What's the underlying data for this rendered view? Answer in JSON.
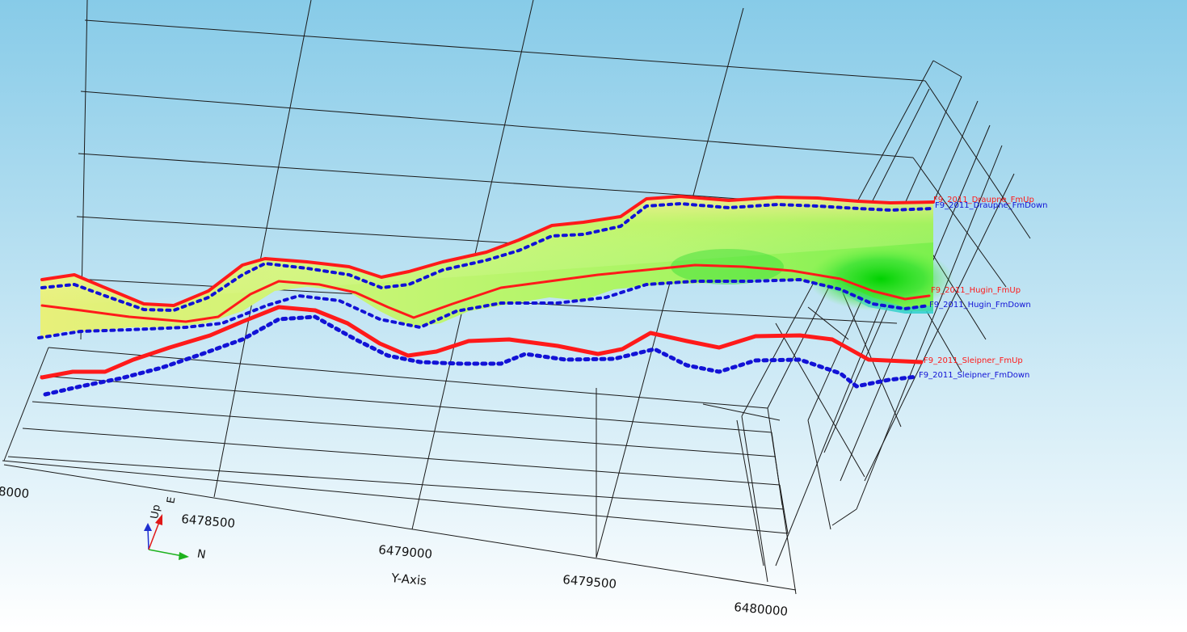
{
  "scene": {
    "background_top": "#87cbe8",
    "background_bottom": "#ffffff",
    "grid_color": "#1a1a1a"
  },
  "axes": {
    "y_axis_title": "Y-Axis",
    "y_ticks": [
      "8000",
      "6478500",
      "6479000",
      "6479500",
      "6480000"
    ]
  },
  "orientation": {
    "up_label": "Up",
    "east_label": "E",
    "north_label": "N",
    "up_color": "#1e2fd0",
    "east_color": "#e01818",
    "north_color": "#1db21d"
  },
  "horizons": {
    "up_color": "#ff1a1a",
    "down_color": "#1212d6",
    "labels": [
      {
        "text": "F9_2011_Draupne_FmUp",
        "kind": "up"
      },
      {
        "text": "F9_2011_Draupne_FmDown",
        "kind": "down"
      },
      {
        "text": "F9_2011_Hugin_FmUp",
        "kind": "up"
      },
      {
        "text": "F9_2011_Hugin_FmDown",
        "kind": "down"
      },
      {
        "text": "F9_2011_Sleipner_FmUp",
        "kind": "up"
      },
      {
        "text": "F9_2011_Sleipner_FmDown",
        "kind": "down"
      }
    ]
  }
}
